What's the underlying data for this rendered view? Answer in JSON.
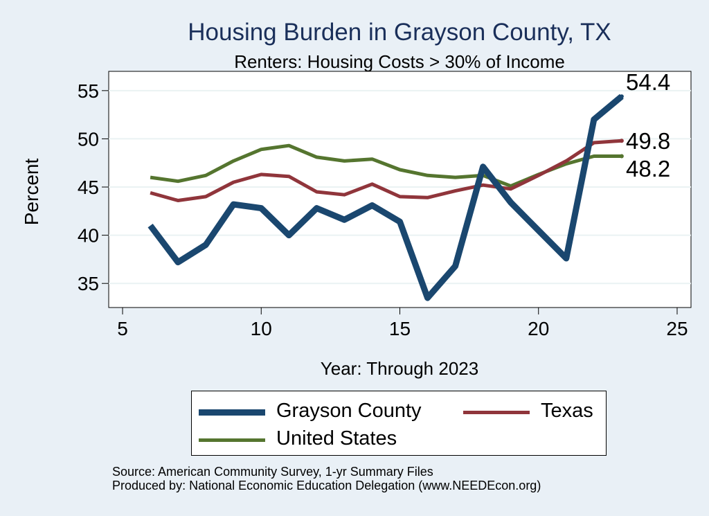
{
  "chart_data": {
    "type": "line",
    "title": "Housing Burden in Grayson County, TX",
    "subtitle": "Renters: Housing Costs > 30% of Income",
    "xlabel": "Year: Through 2023",
    "ylabel": "Percent",
    "xlim": [
      4.5,
      25.5
    ],
    "ylim": [
      32.5,
      57
    ],
    "xticks": [
      5,
      10,
      15,
      20,
      25
    ],
    "yticks": [
      35,
      40,
      45,
      50,
      55
    ],
    "grid": true,
    "legend_position": "bottom",
    "x": [
      6,
      7,
      8,
      9,
      10,
      11,
      12,
      13,
      14,
      15,
      16,
      17,
      18,
      19,
      20,
      21,
      22,
      23
    ],
    "series": [
      {
        "name": "Grayson County",
        "color": "#1a476f",
        "end_label": "54.4",
        "values": [
          41.0,
          37.2,
          39.0,
          43.2,
          42.8,
          40.0,
          42.8,
          41.6,
          43.1,
          41.4,
          33.5,
          36.8,
          47.1,
          43.4,
          40.5,
          37.6,
          52.0,
          54.4
        ]
      },
      {
        "name": "Texas",
        "color": "#90353b",
        "end_label": "49.8",
        "values": [
          44.4,
          43.6,
          44.0,
          45.5,
          46.3,
          46.1,
          44.5,
          44.2,
          45.3,
          44.0,
          43.9,
          44.6,
          45.2,
          44.8,
          46.2,
          47.7,
          49.6,
          49.8
        ]
      },
      {
        "name": "United States",
        "color": "#55752f",
        "end_label": "48.2",
        "values": [
          46.0,
          45.6,
          46.2,
          47.7,
          48.9,
          49.3,
          48.1,
          47.7,
          47.9,
          46.8,
          46.2,
          46.0,
          46.2,
          45.1,
          46.3,
          47.4,
          48.2,
          48.2
        ]
      }
    ]
  },
  "footer": {
    "source": "Source: American Community Survey, 1-yr Summary Files",
    "produced": "Produced by: National Economic Education Delegation (www.NEEDEcon.org)"
  }
}
